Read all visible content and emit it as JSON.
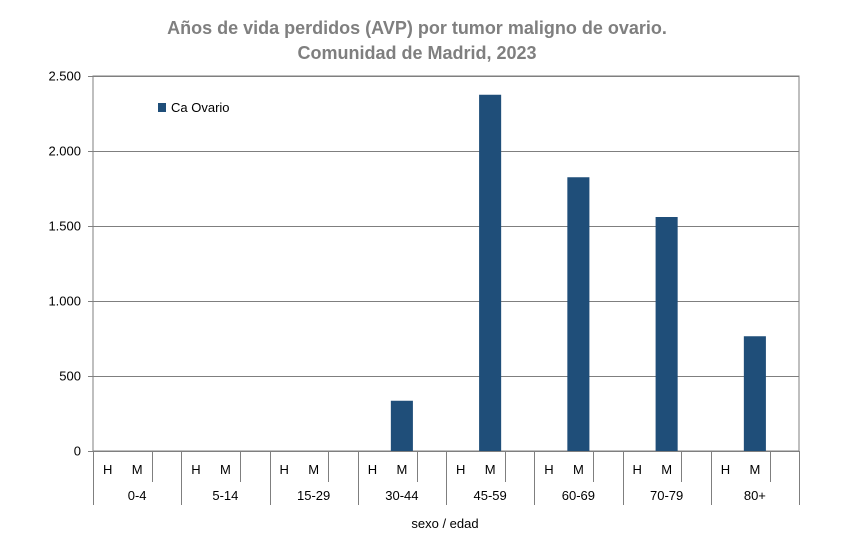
{
  "chart_data": {
    "type": "bar",
    "title_line1": "Años de vida perdidos (AVP) por tumor maligno de ovario.",
    "title_line2": "Comunidad de Madrid, 2023",
    "xlabel": "sexo / edad",
    "ylabel": "",
    "ylim": [
      0,
      2500
    ],
    "yticks": [
      0,
      500,
      1000,
      1500,
      2000,
      2500
    ],
    "ytick_labels": [
      "0",
      "500",
      "1.000",
      "1.500",
      "2.000",
      "2.500"
    ],
    "grid": true,
    "legend_position": "top-left",
    "groups": [
      "0-4",
      "5-14",
      "15-29",
      "30-44",
      "45-59",
      "60-69",
      "70-79",
      "80+"
    ],
    "subcategories": [
      "H",
      "M"
    ],
    "series": [
      {
        "name": "Ca Ovario",
        "color": "#1f4e79",
        "values": [
          [
            0,
            0
          ],
          [
            0,
            0
          ],
          [
            0,
            0
          ],
          [
            0,
            335
          ],
          [
            0,
            2375
          ],
          [
            0,
            1825
          ],
          [
            0,
            1560
          ],
          [
            0,
            765
          ]
        ]
      }
    ]
  }
}
